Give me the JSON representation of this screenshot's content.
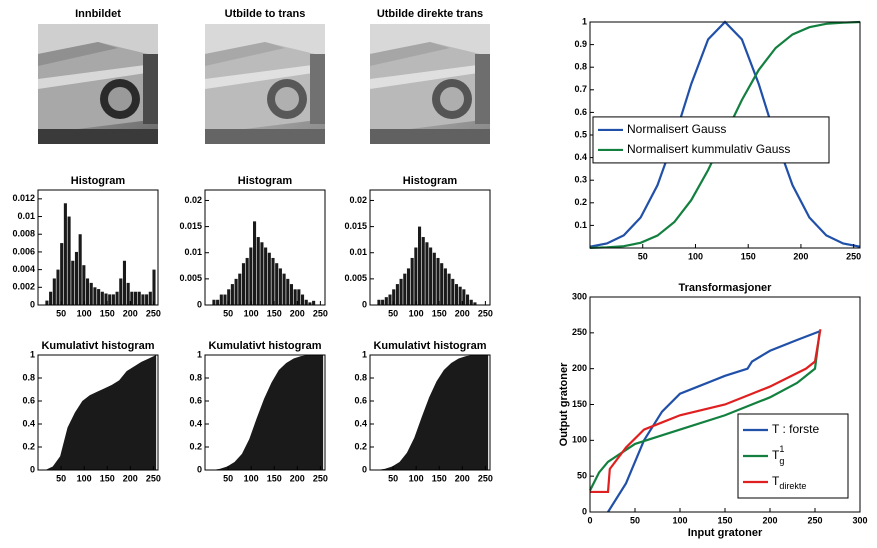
{
  "images": [
    {
      "title": "Innbildet"
    },
    {
      "title": "Utbilde to trans"
    },
    {
      "title": "Utbilde direkte trans"
    }
  ],
  "chart_data": [
    {
      "type": "histogram",
      "title": "Histogram",
      "color": "#1a1a1a",
      "bins": [
        0,
        8,
        16,
        24,
        32,
        40,
        48,
        56,
        64,
        72,
        80,
        88,
        96,
        104,
        112,
        120,
        128,
        136,
        144,
        152,
        160,
        168,
        176,
        184,
        192,
        200,
        208,
        216,
        224,
        232,
        240,
        248,
        256
      ],
      "counts": [
        0,
        0,
        0.0005,
        0.0015,
        0.003,
        0.004,
        0.007,
        0.0115,
        0.01,
        0.005,
        0.006,
        0.008,
        0.0045,
        0.003,
        0.0025,
        0.002,
        0.0018,
        0.0015,
        0.0013,
        0.0012,
        0.0012,
        0.0015,
        0.003,
        0.005,
        0.0025,
        0.0015,
        0.0015,
        0.0015,
        0.0012,
        0.0012,
        0.0015,
        0.004
      ],
      "xlim": [
        0,
        260
      ],
      "xticks": [
        50,
        100,
        150,
        200,
        250
      ],
      "ylim": [
        0,
        0.013
      ],
      "yticks": [
        0,
        0.002,
        0.004,
        0.006,
        0.008,
        0.01,
        0.012
      ]
    },
    {
      "type": "histogram",
      "title": "Histogram",
      "color": "#1a1a1a",
      "bins": [
        0,
        8,
        16,
        24,
        32,
        40,
        48,
        56,
        64,
        72,
        80,
        88,
        96,
        104,
        112,
        120,
        128,
        136,
        144,
        152,
        160,
        168,
        176,
        184,
        192,
        200,
        208,
        216,
        224,
        232,
        240,
        248,
        256
      ],
      "counts": [
        0,
        0,
        0.001,
        0.001,
        0.002,
        0.002,
        0.003,
        0.004,
        0.005,
        0.006,
        0.008,
        0.009,
        0.011,
        0.016,
        0.013,
        0.012,
        0.011,
        0.01,
        0.009,
        0.008,
        0.007,
        0.006,
        0.005,
        0.004,
        0.003,
        0.003,
        0.002,
        0.001,
        0.0005,
        0.0008,
        0,
        0
      ],
      "xlim": [
        0,
        260
      ],
      "xticks": [
        50,
        100,
        150,
        200,
        250
      ],
      "ylim": [
        0,
        0.022
      ],
      "yticks": [
        0,
        0.005,
        0.01,
        0.015,
        0.02
      ]
    },
    {
      "type": "histogram",
      "title": "Histogram",
      "color": "#1a1a1a",
      "bins": [
        0,
        8,
        16,
        24,
        32,
        40,
        48,
        56,
        64,
        72,
        80,
        88,
        96,
        104,
        112,
        120,
        128,
        136,
        144,
        152,
        160,
        168,
        176,
        184,
        192,
        200,
        208,
        216,
        224,
        232,
        240,
        248,
        256
      ],
      "counts": [
        0,
        0,
        0.001,
        0.001,
        0.0015,
        0.002,
        0.003,
        0.004,
        0.005,
        0.006,
        0.007,
        0.009,
        0.011,
        0.015,
        0.013,
        0.012,
        0.011,
        0.01,
        0.009,
        0.008,
        0.007,
        0.006,
        0.005,
        0.004,
        0.0035,
        0.003,
        0.002,
        0.001,
        0.0005,
        0,
        0,
        0
      ],
      "xlim": [
        0,
        260
      ],
      "xticks": [
        50,
        100,
        150,
        200,
        250
      ],
      "ylim": [
        0,
        0.022
      ],
      "yticks": [
        0,
        0.005,
        0.01,
        0.015,
        0.02
      ]
    },
    {
      "type": "area",
      "title": "Kumulativt histogram",
      "color": "#1a1a1a",
      "x": [
        0,
        16,
        32,
        48,
        64,
        80,
        96,
        112,
        128,
        144,
        160,
        176,
        192,
        208,
        224,
        240,
        256
      ],
      "values": [
        0,
        0,
        0.03,
        0.12,
        0.37,
        0.5,
        0.6,
        0.65,
        0.68,
        0.71,
        0.74,
        0.78,
        0.86,
        0.9,
        0.94,
        0.97,
        1
      ],
      "xlim": [
        0,
        260
      ],
      "xticks": [
        50,
        100,
        150,
        200,
        250
      ],
      "ylim": [
        0,
        1
      ],
      "yticks": [
        0,
        0.2,
        0.4,
        0.6,
        0.8,
        1
      ]
    },
    {
      "type": "area",
      "title": "Kumulativt histogram",
      "color": "#1a1a1a",
      "x": [
        0,
        16,
        32,
        48,
        64,
        80,
        96,
        112,
        128,
        144,
        160,
        176,
        192,
        208,
        224,
        240,
        256
      ],
      "values": [
        0,
        0,
        0.01,
        0.03,
        0.07,
        0.14,
        0.27,
        0.45,
        0.62,
        0.76,
        0.87,
        0.93,
        0.97,
        0.99,
        1,
        1,
        1
      ],
      "xlim": [
        0,
        260
      ],
      "xticks": [
        50,
        100,
        150,
        200,
        250
      ],
      "ylim": [
        0,
        1
      ],
      "yticks": [
        0,
        0.2,
        0.4,
        0.6,
        0.8,
        1
      ]
    },
    {
      "type": "area",
      "title": "Kumulativt histogram",
      "color": "#1a1a1a",
      "x": [
        0,
        16,
        32,
        48,
        64,
        80,
        96,
        112,
        128,
        144,
        160,
        176,
        192,
        208,
        224,
        240,
        256
      ],
      "values": [
        0,
        0,
        0.01,
        0.03,
        0.07,
        0.15,
        0.28,
        0.46,
        0.63,
        0.77,
        0.87,
        0.93,
        0.97,
        0.99,
        1,
        1,
        1
      ],
      "xlim": [
        0,
        260
      ],
      "xticks": [
        50,
        100,
        150,
        200,
        250
      ],
      "ylim": [
        0,
        1
      ],
      "yticks": [
        0,
        0.2,
        0.4,
        0.6,
        0.8,
        1
      ]
    },
    {
      "type": "line",
      "legend": "center left",
      "series": [
        {
          "name": "Normalisert Gauss",
          "color": "#2050a8",
          "x": [
            0,
            16,
            32,
            48,
            64,
            80,
            96,
            112,
            128,
            144,
            160,
            176,
            192,
            208,
            224,
            240,
            256
          ],
          "values": [
            0.006,
            0.02,
            0.056,
            0.135,
            0.278,
            0.487,
            0.726,
            0.923,
            1,
            0.923,
            0.726,
            0.487,
            0.278,
            0.135,
            0.056,
            0.02,
            0.006
          ]
        },
        {
          "name": "Normalisert kummulativ Gauss",
          "color": "#138040",
          "x": [
            0,
            16,
            32,
            48,
            64,
            80,
            96,
            112,
            128,
            144,
            160,
            176,
            192,
            208,
            224,
            240,
            256
          ],
          "values": [
            0.0007,
            0.003,
            0.008,
            0.023,
            0.055,
            0.115,
            0.212,
            0.345,
            0.5,
            0.655,
            0.788,
            0.885,
            0.945,
            0.977,
            0.992,
            0.997,
            1
          ]
        }
      ],
      "xlim": [
        0,
        256
      ],
      "xticks": [
        50,
        100,
        150,
        200,
        250
      ],
      "ylim": [
        0,
        1
      ],
      "yticks": [
        0.1,
        0.2,
        0.3,
        0.4,
        0.5,
        0.6,
        0.7,
        0.8,
        0.9,
        1
      ]
    },
    {
      "type": "line",
      "title": "Transformasjoner",
      "x_label": "Input gratoner",
      "y_label": "Output gratoner",
      "legend": "lower right",
      "series": [
        {
          "name": "T : forste",
          "color": "#2050a8",
          "x": [
            20,
            40,
            50,
            60,
            80,
            100,
            120,
            150,
            175,
            180,
            200,
            230,
            255
          ],
          "values": [
            0,
            40,
            70,
            100,
            140,
            165,
            175,
            190,
            200,
            210,
            225,
            240,
            252
          ]
        },
        {
          "name": "T",
          "subscript": "g",
          "superscript": "1",
          "color": "#138040",
          "x": [
            0,
            10,
            20,
            50,
            100,
            150,
            200,
            230,
            250,
            255
          ],
          "values": [
            30,
            55,
            70,
            95,
            115,
            135,
            160,
            180,
            200,
            250
          ]
        },
        {
          "name": "T",
          "subscript": "direkte",
          "color": "#e02020",
          "x": [
            0,
            20,
            22,
            40,
            60,
            80,
            100,
            150,
            180,
            200,
            240,
            250,
            256
          ],
          "values": [
            28,
            28,
            60,
            90,
            115,
            125,
            135,
            150,
            165,
            175,
            200,
            210,
            255
          ]
        }
      ],
      "xlim": [
        0,
        300
      ],
      "xticks": [
        0,
        50,
        100,
        150,
        200,
        250,
        300
      ],
      "ylim": [
        0,
        300
      ],
      "yticks": [
        0,
        50,
        100,
        150,
        200,
        250,
        300
      ]
    }
  ]
}
